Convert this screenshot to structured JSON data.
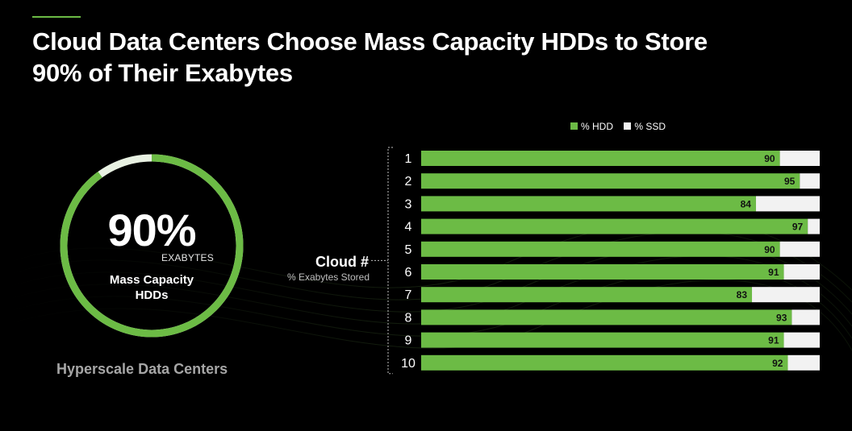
{
  "title_lines": [
    "Cloud Data Centers Choose Mass Capacity HDDs to Store",
    "90% of Their Exabytes"
  ],
  "donut": {
    "percent_value": 90,
    "percent_label": "90%",
    "unit": "EXABYTES",
    "label_lines": [
      "Mass Capacity",
      "HDDs"
    ],
    "caption": "Hyperscale Data Centers"
  },
  "colors": {
    "hdd": "#6cbb45",
    "ssd": "#f2f2f2",
    "background": "#000000"
  },
  "chart_data": {
    "type": "bar",
    "orientation": "horizontal",
    "stacked": true,
    "axis_label": "Cloud #",
    "axis_sublabel": "% Exabytes Stored",
    "categories": [
      "1",
      "2",
      "3",
      "4",
      "5",
      "6",
      "7",
      "8",
      "9",
      "10"
    ],
    "series": [
      {
        "name": "% HDD",
        "values": [
          90,
          95,
          84,
          97,
          90,
          91,
          83,
          93,
          91,
          92
        ]
      },
      {
        "name": "% SSD",
        "values": [
          10,
          5,
          16,
          3,
          10,
          9,
          17,
          7,
          9,
          8
        ]
      }
    ],
    "xlim": [
      0,
      100
    ],
    "legend_position": "top",
    "data_labels": "HDD values at end of green bar"
  }
}
